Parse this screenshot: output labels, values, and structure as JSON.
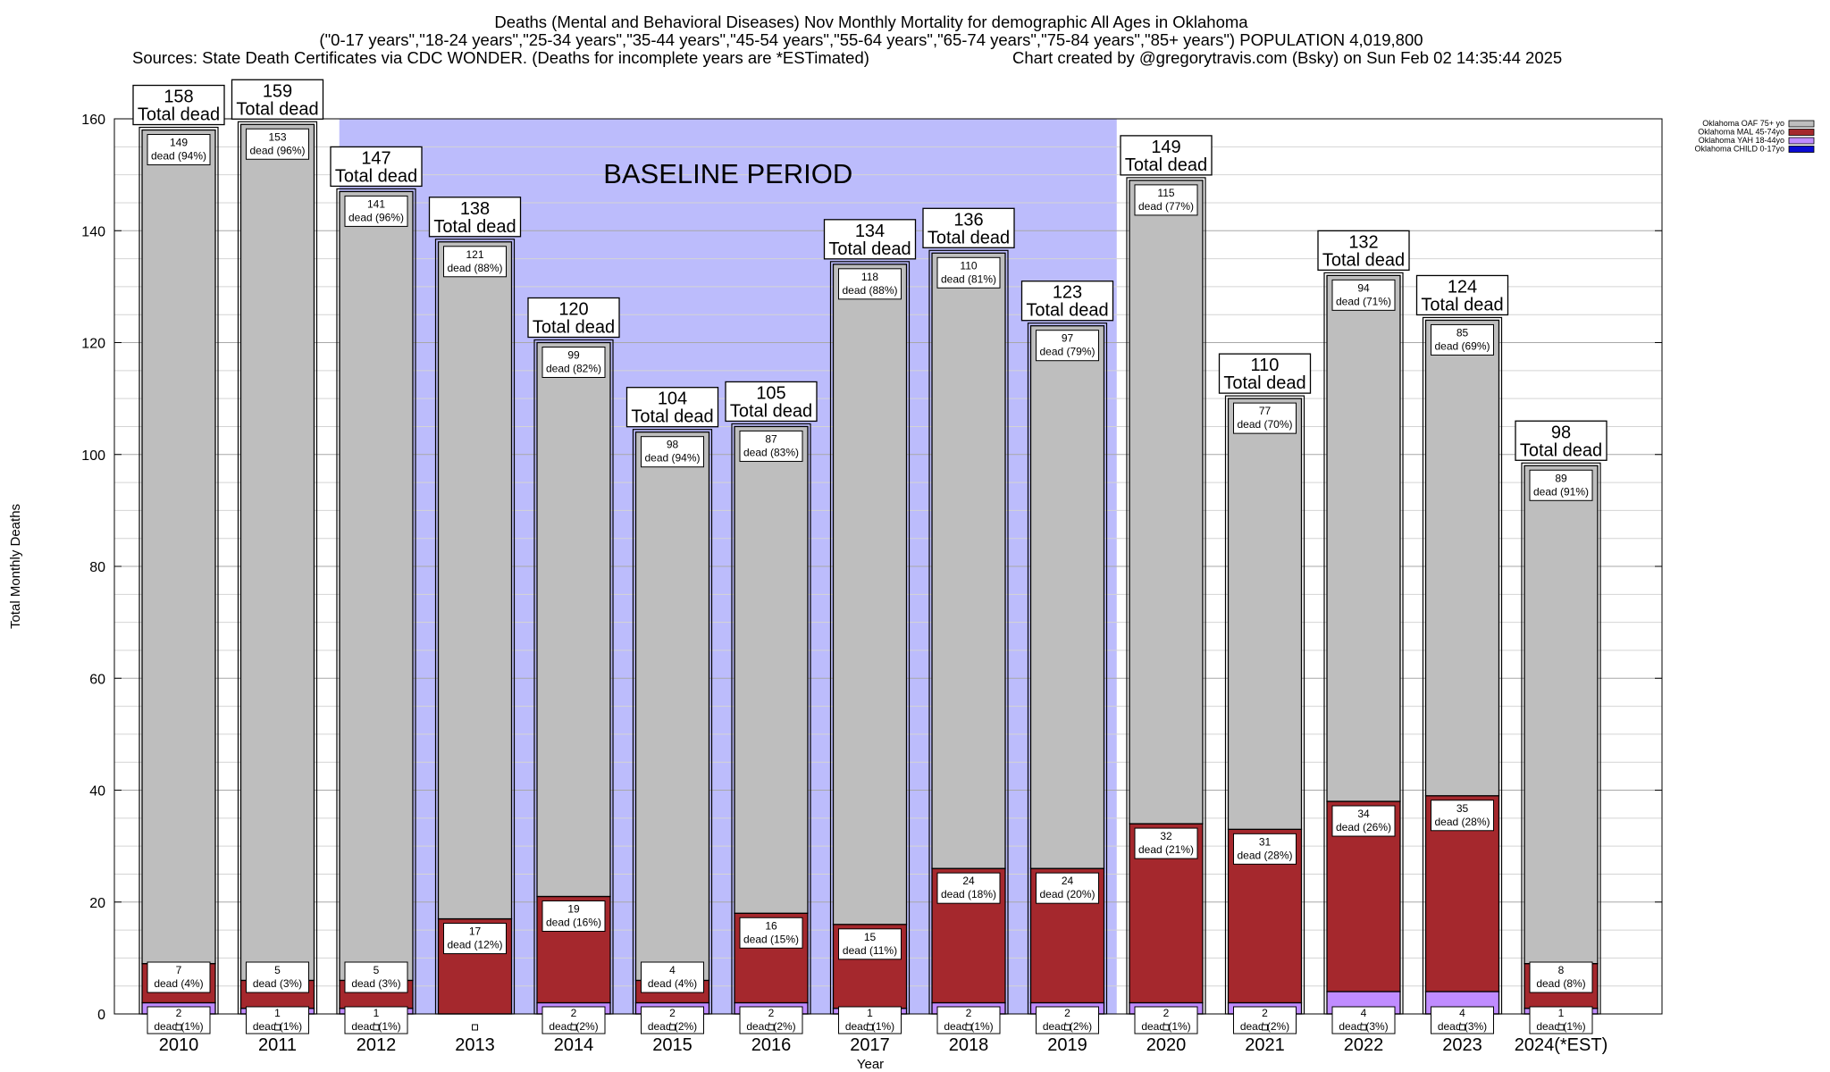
{
  "chart_data": {
    "type": "bar",
    "stacked": true,
    "title": "Deaths (Mental and Behavioral Diseases) Nov Monthly Mortality for demographic All Ages in Oklahoma",
    "subtitle": "(\"0-17 years\",\"18-24 years\",\"25-34 years\",\"35-44 years\",\"45-54 years\",\"55-64 years\",\"65-74 years\",\"75-84 years\",\"85+ years\") POPULATION 4,019,800",
    "sources": "Sources: State Death Certificates via CDC WONDER. (Deaths for incomplete years are *ESTimated)",
    "credit": "Chart created by @gregorytravis.com (Bsky) on Sun Feb 02 14:35:44 2025",
    "xlabel": "Year",
    "ylabel": "Total Monthly Deaths",
    "ylim": [
      0,
      160
    ],
    "yticks": [
      0,
      20,
      40,
      60,
      80,
      100,
      120,
      140,
      160
    ],
    "grid": true,
    "legend_placement": "top-right",
    "baseline_label": "BASELINE PERIOD",
    "baseline_range": [
      "2012",
      "2019"
    ],
    "total_label": "Total dead",
    "dead_word": "dead",
    "categories": [
      "2010",
      "2011",
      "2012",
      "2013",
      "2014",
      "2015",
      "2016",
      "2017",
      "2018",
      "2019",
      "2020",
      "2021",
      "2022",
      "2023",
      "2024(*EST)"
    ],
    "totals": [
      158,
      159,
      147,
      138,
      120,
      104,
      105,
      134,
      136,
      123,
      149,
      110,
      132,
      124,
      98
    ],
    "series": [
      {
        "name": "Oklahoma CHILD 0-17yo",
        "color": "#0a0ad2",
        "values": [
          0,
          0,
          0,
          0,
          0,
          0,
          0,
          0,
          0,
          0,
          0,
          0,
          0,
          0,
          0
        ]
      },
      {
        "name": "Oklahoma YAH 18-44yo",
        "color": "#c08cff",
        "values": [
          2,
          1,
          1,
          0,
          2,
          2,
          2,
          1,
          2,
          2,
          2,
          2,
          4,
          4,
          1
        ],
        "pct": [
          "1%",
          "1%",
          "1%",
          "",
          "2%",
          "2%",
          "2%",
          "1%",
          "1%",
          "2%",
          "1%",
          "2%",
          "3%",
          "3%",
          "1%"
        ]
      },
      {
        "name": "Oklahoma MAL 45-74yo",
        "color": "#a5282d",
        "values": [
          7,
          5,
          5,
          17,
          19,
          4,
          16,
          15,
          24,
          24,
          32,
          31,
          34,
          35,
          8
        ],
        "pct": [
          "4%",
          "3%",
          "3%",
          "12%",
          "16%",
          "4%",
          "15%",
          "11%",
          "18%",
          "20%",
          "21%",
          "28%",
          "26%",
          "28%",
          "8%"
        ]
      },
      {
        "name": "Oklahoma OAF 75+ yo",
        "color": "#bebebe",
        "values": [
          149,
          153,
          141,
          121,
          99,
          98,
          87,
          118,
          110,
          97,
          115,
          77,
          94,
          85,
          89
        ],
        "pct": [
          "94%",
          "96%",
          "96%",
          "88%",
          "82%",
          "94%",
          "83%",
          "88%",
          "81%",
          "79%",
          "77%",
          "70%",
          "71%",
          "69%",
          "91%"
        ]
      }
    ]
  }
}
